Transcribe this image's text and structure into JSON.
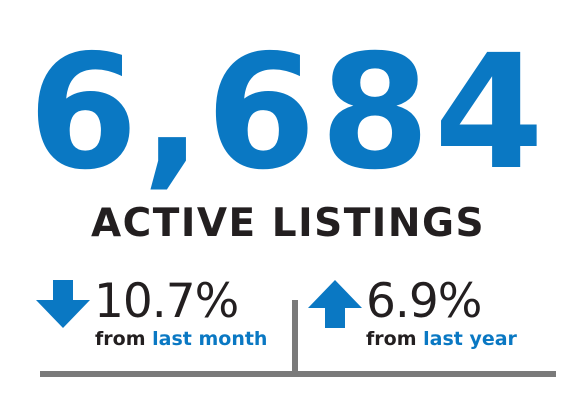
{
  "headline": {
    "value": "6,684",
    "label": "ACTIVE LISTINGS"
  },
  "stats": [
    {
      "direction": "down",
      "icon": "arrow-down-icon",
      "percent": "10.7%",
      "caption_prefix": "from",
      "caption_period": "last month"
    },
    {
      "direction": "up",
      "icon": "arrow-up-icon",
      "percent": "6.9%",
      "caption_prefix": "from",
      "caption_period": "last year"
    }
  ],
  "colors": {
    "accent_blue": "#0a78c3",
    "text_dark": "#231f20",
    "divider_gray": "#7a7a7a"
  }
}
